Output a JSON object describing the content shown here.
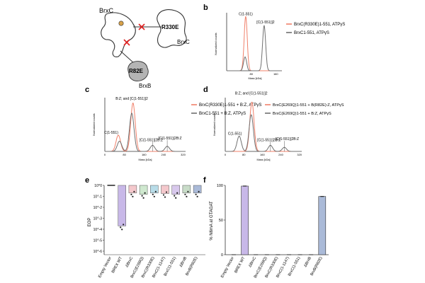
{
  "panels": {
    "b": "b",
    "c": "c",
    "d": "d",
    "e": "e",
    "f": "f"
  },
  "schematic": {
    "brxc_top": "BrxC",
    "brxc_right": "BrxC",
    "mut_r330e": "R330E",
    "mut_r82e": "R82E",
    "brxb": "BrxB"
  },
  "colors": {
    "orange": "#f0806a",
    "gray": "#707070",
    "dark": "#444444",
    "purple": "#c8b8e8",
    "pink": "#f4c8cc",
    "green": "#cfe8cf",
    "teal": "#b8dce8",
    "blue": "#a8c0e0",
    "lilac": "#d8c8ec",
    "sage": "#c8dcc8",
    "steel": "#aabad8"
  },
  "chart_data": [
    {
      "panel": "b",
      "type": "line",
      "xlabel": "Mass [kDa]",
      "ylabel": "Normalized counts",
      "xlim": [
        0,
        180
      ],
      "x_ticks": [
        "80",
        "160"
      ],
      "series": [
        {
          "name": "BrxC(R330E)1-551, ATPγS",
          "color": "orange",
          "peaks": [
            {
              "mass": 62,
              "height": 0.98
            }
          ]
        },
        {
          "name": "BrxC1-551, ATPγS",
          "color": "gray",
          "peaks": [
            {
              "mass": 60,
              "height": 0.25
            },
            {
              "mass": 122,
              "height": 0.82
            }
          ]
        }
      ],
      "annotations": [
        {
          "text": "C(1-551)",
          "mass": 62
        },
        {
          "text": "[C(1-551)]2",
          "mass": 122
        }
      ]
    },
    {
      "panel": "c",
      "type": "line",
      "xlabel": "Mass [kDa]",
      "ylabel": "Normalized counts",
      "xlim": [
        0,
        330
      ],
      "x_ticks": [
        "0",
        "80",
        "160",
        "240",
        "320"
      ],
      "series": [
        {
          "name": "BrxC(R330E)1-551 + B:Z, ATPγS",
          "color": "orange",
          "peaks": [
            {
              "mass": 55,
              "height": 0.32
            },
            {
              "mass": 115,
              "height": 0.95
            }
          ]
        },
        {
          "name": "BrxC1-551 + B:Z, ATPγS",
          "color": "gray",
          "peaks": [
            {
              "mass": 60,
              "height": 0.2
            },
            {
              "mass": 110,
              "height": 0.75
            },
            {
              "mass": 195,
              "height": 0.12
            },
            {
              "mass": 255,
              "height": 0.1
            }
          ]
        }
      ],
      "annotations": [
        {
          "text": "B:Z; and [C(1-551)]2",
          "mass": 110
        },
        {
          "text": "C(1-551)",
          "mass": 55
        },
        {
          "text": "[C(1-551)]2B:Z",
          "mass": 195
        },
        {
          "text": "[C(1-551)]2B:Z",
          "mass": 255
        }
      ]
    },
    {
      "panel": "d",
      "type": "line",
      "xlabel": "Mass [kDa]",
      "ylabel": "Normalized counts",
      "xlim": [
        0,
        330
      ],
      "x_ticks": [
        "0",
        "80",
        "160",
        "240",
        "320"
      ],
      "series": [
        {
          "name": "BrxC(E269Q)1-551 + B(R82E):Z, ATPγS",
          "color": "orange",
          "peaks": [
            {
              "mass": 115,
              "height": 0.97
            }
          ]
        },
        {
          "name": "BrxC(E269Q)1-551 + B:Z, ATPγS",
          "color": "gray",
          "peaks": [
            {
              "mass": 60,
              "height": 0.3
            },
            {
              "mass": 112,
              "height": 0.72
            },
            {
              "mass": 195,
              "height": 0.12
            },
            {
              "mass": 255,
              "height": 0.08
            }
          ]
        }
      ],
      "annotations": [
        {
          "text": "B:Z; and [C(1-551)]2",
          "mass": 112
        },
        {
          "text": "C(1-551)",
          "mass": 60
        },
        {
          "text": "[C(1-551)]2B:Z",
          "mass": 195
        },
        {
          "text": "[C(1-551)]2B:Z",
          "mass": 255
        }
      ]
    },
    {
      "panel": "e",
      "type": "bar",
      "ylabel": "EOP",
      "y_scale": "log10",
      "ylim_exp": [
        -6,
        0
      ],
      "y_ticks": [
        "10^0",
        "10^-1",
        "10^-2",
        "10^-3",
        "10^-4",
        "10^-5",
        "10^-6"
      ],
      "categories": [
        "Empty Vector",
        "BREX WT",
        "ΔBrxC",
        "BrxC(E269Q)",
        "BrxC(R330E)",
        "BrxC(1-1147)",
        "BrxC(1-551)",
        "ΔBrxB",
        "BrxB(R82E)"
      ],
      "values": [
        1.0,
        0.0002,
        0.2,
        0.15,
        0.2,
        0.18,
        0.15,
        0.2,
        0.2
      ],
      "bar_colors": [
        "none",
        "purple",
        "pink",
        "green",
        "teal",
        "pink",
        "lilac",
        "sage",
        "steel"
      ]
    },
    {
      "panel": "f",
      "type": "bar",
      "ylabel": "% N6mA at GTAGAT",
      "ylim": [
        0,
        100
      ],
      "y_ticks": [
        "0",
        "50",
        "100"
      ],
      "categories": [
        "Empty Vector",
        "BREX WT",
        "ΔBrxC",
        "BrxC(E269Q)",
        "BrxC(R330E)",
        "BrxC(1-1147)",
        "BrxC(1-551)",
        "ΔBrxB",
        "BrxB(R82E)"
      ],
      "values": [
        0,
        99,
        0,
        0,
        0,
        0,
        0,
        0,
        84
      ],
      "bar_colors": [
        "none",
        "purple",
        "none",
        "none",
        "none",
        "none",
        "none",
        "none",
        "steel"
      ]
    }
  ]
}
